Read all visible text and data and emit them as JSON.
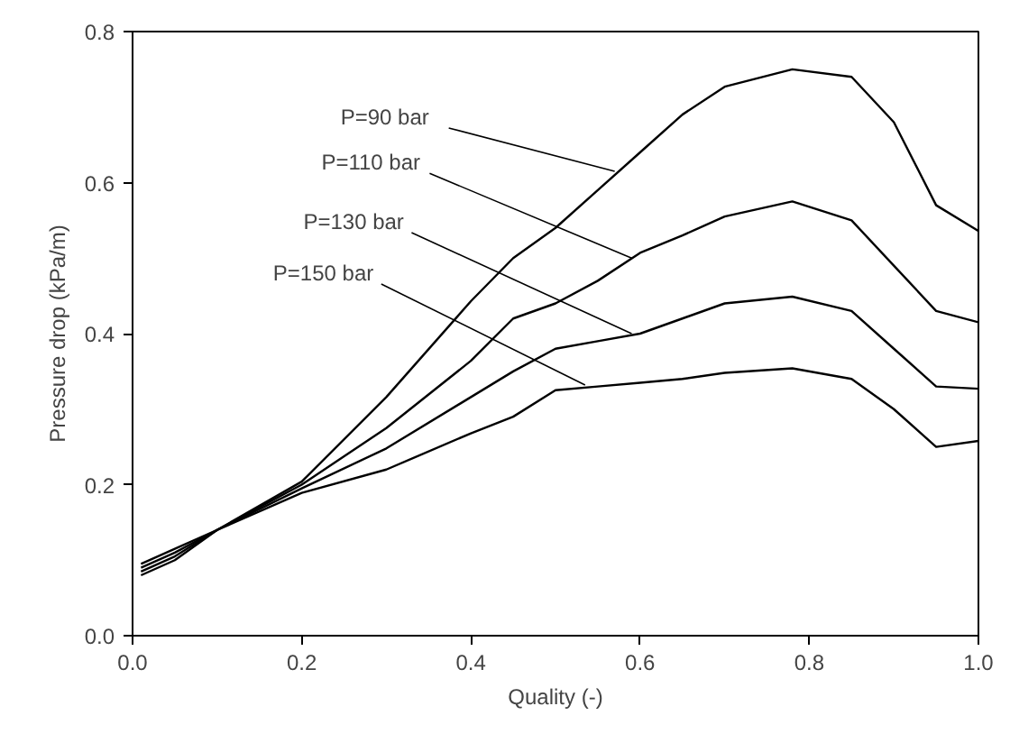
{
  "chart_data": {
    "type": "line",
    "xlabel": "Quality (-)",
    "ylabel": "Pressure drop (kPa/m)",
    "x": [
      0.01,
      0.05,
      0.1,
      0.2,
      0.3,
      0.4,
      0.45,
      0.5,
      0.55,
      0.6,
      0.65,
      0.7,
      0.78,
      0.85,
      0.9,
      0.95,
      1.0
    ],
    "series": [
      {
        "color": "#000000",
        "values": [
          0.08,
          0.1,
          0.14,
          0.204,
          0.316,
          0.443,
          0.5,
          0.54,
          0.59,
          0.64,
          0.69,
          0.727,
          0.75,
          0.74,
          0.68,
          0.57,
          0.536
        ]
      },
      {
        "color": "#000000",
        "values": [
          0.085,
          0.105,
          0.14,
          0.2,
          0.275,
          0.364,
          0.42,
          0.44,
          0.47,
          0.507,
          0.53,
          0.555,
          0.575,
          0.55,
          0.49,
          0.43,
          0.415
        ]
      },
      {
        "color": "#000000",
        "values": [
          0.09,
          0.11,
          0.14,
          0.195,
          0.248,
          0.316,
          0.35,
          0.38,
          0.39,
          0.4,
          0.42,
          0.44,
          0.449,
          0.43,
          0.38,
          0.33,
          0.327
        ]
      },
      {
        "color": "#000000",
        "values": [
          0.095,
          0.115,
          0.14,
          0.189,
          0.22,
          0.268,
          0.29,
          0.325,
          0.33,
          0.335,
          0.34,
          0.348,
          0.354,
          0.34,
          0.3,
          0.25,
          0.258
        ]
      }
    ],
    "annotations": [
      {
        "text": "P=90 bar",
        "x": 0.57,
        "y": 0.615
      },
      {
        "text": "P=110 bar",
        "x": 0.59,
        "y": 0.5
      },
      {
        "text": "P=130 bar",
        "x": 0.59,
        "y": 0.4
      },
      {
        "text": "P=150 bar",
        "x": 0.535,
        "y": 0.332
      }
    ],
    "xlim": [
      0.0,
      1.0
    ],
    "ylim": [
      0.0,
      0.8
    ],
    "xticks": [
      {
        "value": 0.0,
        "label": "0.0"
      },
      0.2,
      0.4,
      0.6,
      0.8,
      {
        "value": 1.0,
        "label": "1.0"
      }
    ],
    "yticks": [
      {
        "value": 0.0,
        "label": "0.0"
      },
      0.2,
      0.4,
      0.6,
      0.8
    ],
    "grid": false,
    "marker": "none",
    "line_style": "solid"
  }
}
